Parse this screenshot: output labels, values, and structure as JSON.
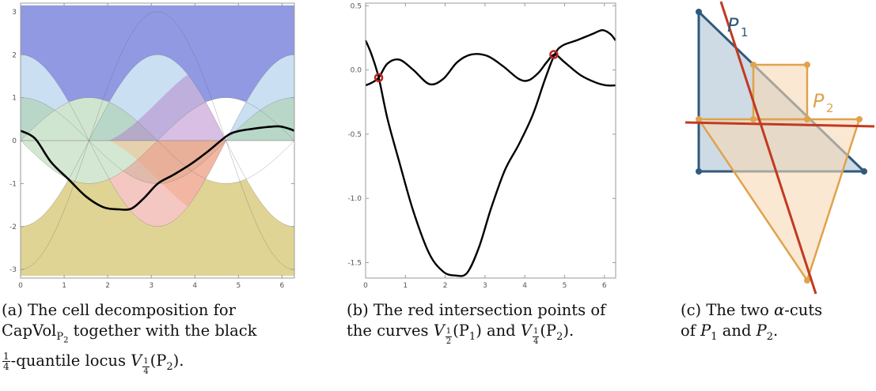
{
  "chart_data": [
    {
      "type": "area",
      "panel": "a",
      "xlim": [
        0,
        6.2832
      ],
      "ylim": [
        -3.2,
        3.2
      ],
      "x_ticks": [
        "0",
        "1",
        "2",
        "3",
        "4",
        "5",
        "6"
      ],
      "y_ticks": [
        "-3",
        "-2",
        "-1",
        "0",
        "1",
        "2",
        "3"
      ],
      "colors": {
        "blue": "#8a93e0",
        "green": "#a9cfa8",
        "yellow": "#ddd28e",
        "orange": "#f2c08e",
        "red": "#ec8f86",
        "purple": "#b27fc7",
        "sky": "#9ec4e6",
        "locus": "#000000"
      },
      "boundary_curves": [
        {
          "name": "2cos",
          "fn": "2cos(x)"
        },
        {
          "name": "-2cos",
          "fn": "-2cos(x)"
        },
        {
          "name": "3cos",
          "fn": "-3cos(x)"
        },
        {
          "name": "sin1",
          "fn": "sin(x)"
        },
        {
          "name": "sin2",
          "fn": "-sin(x)"
        },
        {
          "name": "cosb",
          "fn": "cos(x)"
        }
      ],
      "locus_y": [
        0.23,
        0.05,
        -0.5,
        -0.9,
        -1.3,
        -1.55,
        -1.6,
        -1.58,
        -1.32,
        -1.0,
        -0.8,
        -0.55,
        -0.25,
        0.12,
        0.22,
        0.27,
        0.32,
        0.33,
        0.28,
        0.23
      ],
      "locus_x": [
        0.0,
        0.33,
        0.7,
        1.1,
        1.5,
        1.9,
        2.25,
        2.55,
        2.85,
        3.15,
        3.5,
        3.9,
        4.3,
        4.75,
        5.0,
        5.3,
        5.7,
        5.95,
        6.15,
        6.28
      ]
    },
    {
      "type": "line",
      "panel": "b",
      "xlim": [
        0,
        6.2832
      ],
      "ylim": [
        -1.62,
        0.52
      ],
      "x_ticks": [
        "0",
        "1",
        "2",
        "3",
        "4",
        "5",
        "6"
      ],
      "y_ticks": [
        "0.5",
        "0.0",
        "-0.5",
        "-1.0",
        "-1.5"
      ],
      "series": [
        {
          "x": [
            0.0,
            0.15,
            0.33,
            0.55,
            0.85,
            1.2,
            1.6,
            1.95,
            2.3,
            2.65,
            3.05,
            3.45,
            3.85,
            4.1,
            4.35,
            4.55,
            4.75,
            5.0,
            5.4,
            5.8,
            6.05,
            6.28
          ],
          "y": [
            -0.12,
            -0.1,
            -0.06,
            0.05,
            0.08,
            0.0,
            -0.11,
            -0.07,
            0.06,
            0.12,
            0.11,
            0.03,
            -0.07,
            -0.08,
            -0.02,
            0.06,
            0.12,
            0.06,
            -0.04,
            -0.1,
            -0.12,
            -0.12
          ]
        },
        {
          "x": [
            0.0,
            0.15,
            0.33,
            0.55,
            0.85,
            1.2,
            1.6,
            1.95,
            2.25,
            2.55,
            2.85,
            3.15,
            3.5,
            3.85,
            4.2,
            4.5,
            4.75,
            4.95,
            5.3,
            5.7,
            5.95,
            6.15,
            6.28
          ],
          "y": [
            0.23,
            0.12,
            -0.06,
            -0.38,
            -0.72,
            -1.1,
            -1.43,
            -1.57,
            -1.6,
            -1.58,
            -1.38,
            -1.08,
            -0.78,
            -0.58,
            -0.35,
            -0.08,
            0.12,
            0.19,
            0.23,
            0.28,
            0.31,
            0.28,
            0.23
          ]
        }
      ],
      "intersections": [
        {
          "x": 0.33,
          "y": -0.06
        },
        {
          "x": 4.73,
          "y": 0.12
        }
      ],
      "colors": {
        "curve": "#000000",
        "marker": "#c0201a"
      }
    },
    {
      "type": "diagram",
      "panel": "c",
      "label_p1": "P",
      "label_p1_sub": "1",
      "label_p2": "P",
      "label_p2_sub": "2",
      "colors": {
        "p1_edge": "#2f5a7d",
        "p1_fill": "#c6d3df",
        "p2_edge": "#e0a24c",
        "p2_fill": "#f6d9b6",
        "cut": "#c13a21"
      }
    }
  ],
  "captions": {
    "a": {
      "lead": "(a) The cell decomposition for",
      "line2_a": "CapVol",
      "line2_sub": "P",
      "line2_subsub": "2",
      "line2_b": " together with the black",
      "frac_num": "1",
      "frac_den": "4",
      "line3": "-quantile locus ",
      "V": "V",
      "arg": "(P",
      "arg_sub": "2",
      "arg_end": ")."
    },
    "b": {
      "lead": "(b) The red intersection points of",
      "line2_a": "the curves ",
      "V": "V",
      "frac1_num": "1",
      "frac1_den": "2",
      "arg1": "(P",
      "arg1_sub": "1",
      "arg1_end": ") and ",
      "frac2_num": "1",
      "frac2_den": "4",
      "arg2": "(P",
      "arg2_sub": "2",
      "arg2_end": ")."
    },
    "c": {
      "lead": "(c) The two ",
      "alpha": "α",
      "lead_b": "-cuts",
      "line2": "of ",
      "p1": "P",
      "p1_sub": "1",
      "and": " and ",
      "p2": "P",
      "p2_sub": "2",
      "end": "."
    }
  }
}
